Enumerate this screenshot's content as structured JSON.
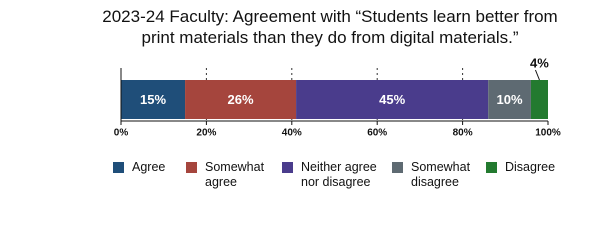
{
  "chart_data": {
    "type": "stacked-bar",
    "orientation": "horizontal",
    "title": "2023-24 Faculty: Agreement with “Students learn better from print materials than they do from digital materials.”",
    "series": [
      {
        "name": "Agree",
        "color": "#1f4e79",
        "values": [
          15
        ],
        "value_labels": [
          "15%"
        ]
      },
      {
        "name": "Somewhat agree",
        "color": "#a5453d",
        "values": [
          26
        ],
        "value_labels": [
          "26%"
        ]
      },
      {
        "name": "Neither agree nor disagree",
        "color": "#4a3c8c",
        "values": [
          45
        ],
        "value_labels": [
          "45%"
        ]
      },
      {
        "name": "Somewhat disagree",
        "color": "#5e6a72",
        "values": [
          10
        ],
        "value_labels": [
          "10%"
        ]
      },
      {
        "name": "Disagree",
        "color": "#237a2f",
        "values": [
          4
        ],
        "value_labels": [
          "4%"
        ]
      }
    ],
    "xlim": [
      0,
      100
    ],
    "xticks": [
      {
        "value": 0,
        "label": "0%"
      },
      {
        "value": 20,
        "label": "20%"
      },
      {
        "value": 40,
        "label": "40%"
      },
      {
        "value": 60,
        "label": "60%"
      },
      {
        "value": 80,
        "label": "80%"
      },
      {
        "value": 100,
        "label": "100%"
      }
    ],
    "grid": true
  }
}
